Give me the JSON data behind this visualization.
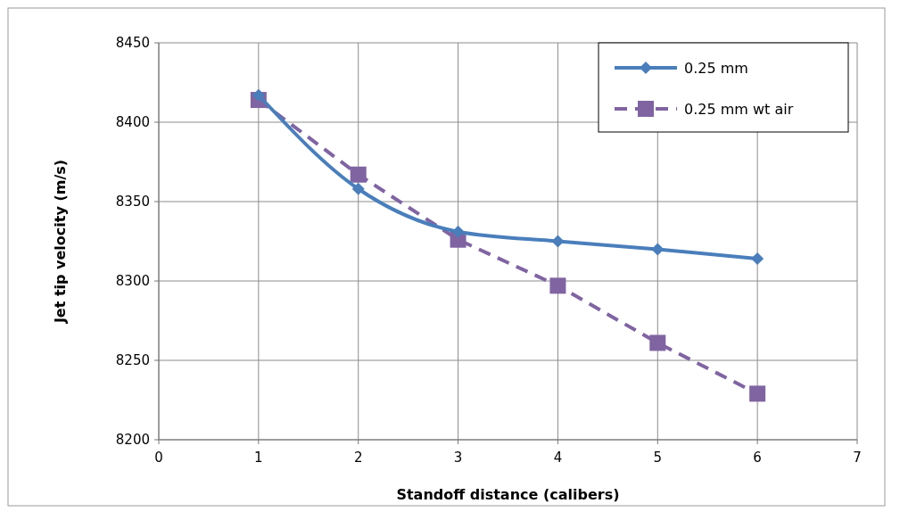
{
  "chart_data": {
    "type": "line",
    "xlabel": "Standoff distance  (calibers)",
    "ylabel": "Jet tip velocity (m/s)",
    "x": [
      1,
      2,
      3,
      4,
      5,
      6
    ],
    "xlim": [
      0,
      7
    ],
    "xticks": [
      0,
      1,
      2,
      3,
      4,
      5,
      6,
      7
    ],
    "ylim": [
      8200,
      8450
    ],
    "yticks": [
      8200,
      8250,
      8300,
      8350,
      8400,
      8450
    ],
    "grid": true,
    "legend": "top right",
    "series": [
      {
        "name": "0.25 mm",
        "color": "#4a7ebb",
        "marker": "diamond",
        "line_style": "solid",
        "values": [
          8417,
          8358,
          8331,
          8325,
          8320,
          8314
        ]
      },
      {
        "name": "0.25 mm wt air",
        "color": "#8064a2",
        "marker": "square",
        "line_style": "dashed",
        "values": [
          8414,
          8367,
          8326,
          8297,
          8261,
          8229
        ]
      }
    ]
  }
}
